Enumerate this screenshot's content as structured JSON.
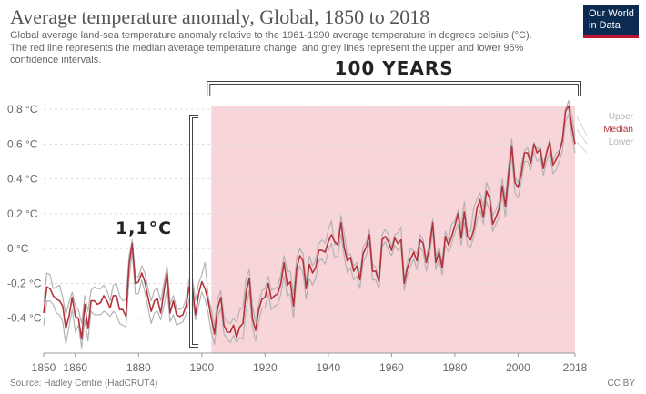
{
  "header": {
    "title": "Average temperature anomaly, Global, 1850 to 2018",
    "subtitle": "Global average land-sea temperature anomaly relative to the 1961-1990 average temperature in degrees celsius (°C). The red line represents the median average temperature change, and grey lines represent the upper and lower 95% confidence intervals."
  },
  "logo": {
    "line1": "Our World",
    "line2": "in Data"
  },
  "footer": {
    "source": "Source: Hadley Centre (HadCRUT4)",
    "license": "CC BY"
  },
  "annotations": {
    "years_label": "100 YEARS",
    "temp_label": "1,1°C"
  },
  "colors": {
    "median": "#b3333d",
    "bounds": "#b3b3b3",
    "highlight": "#f7d5d8",
    "grid": "#dddddd"
  },
  "chart_data": {
    "type": "line",
    "title": "Average temperature anomaly, Global, 1850 to 2018",
    "xlabel": "",
    "ylabel": "",
    "xlim": [
      1850,
      2018
    ],
    "ylim": [
      -0.6,
      0.9
    ],
    "x_ticks": [
      1850,
      1860,
      1880,
      1900,
      1920,
      1940,
      1960,
      1980,
      2000,
      2018
    ],
    "y_ticks": [
      -0.4,
      -0.2,
      0,
      0.2,
      0.4,
      0.6,
      0.8
    ],
    "y_tick_labels": [
      "-0.4 °C",
      "-0.2 °C",
      "0 °C",
      "0.2 °C",
      "0.4 °C",
      "0.6 °C",
      "0.8 °C"
    ],
    "grid": true,
    "legend": "right-end",
    "highlight_range": [
      1903,
      2018
    ],
    "x": [
      1850,
      1851,
      1852,
      1853,
      1854,
      1855,
      1856,
      1857,
      1858,
      1859,
      1860,
      1861,
      1862,
      1863,
      1864,
      1865,
      1866,
      1867,
      1868,
      1869,
      1870,
      1871,
      1872,
      1873,
      1874,
      1875,
      1876,
      1877,
      1878,
      1879,
      1880,
      1881,
      1882,
      1883,
      1884,
      1885,
      1886,
      1887,
      1888,
      1889,
      1890,
      1891,
      1892,
      1893,
      1894,
      1895,
      1896,
      1897,
      1898,
      1899,
      1900,
      1901,
      1902,
      1903,
      1904,
      1905,
      1906,
      1907,
      1908,
      1909,
      1910,
      1911,
      1912,
      1913,
      1914,
      1915,
      1916,
      1917,
      1918,
      1919,
      1920,
      1921,
      1922,
      1923,
      1924,
      1925,
      1926,
      1927,
      1928,
      1929,
      1930,
      1931,
      1932,
      1933,
      1934,
      1935,
      1936,
      1937,
      1938,
      1939,
      1940,
      1941,
      1942,
      1943,
      1944,
      1945,
      1946,
      1947,
      1948,
      1949,
      1950,
      1951,
      1952,
      1953,
      1954,
      1955,
      1956,
      1957,
      1958,
      1959,
      1960,
      1961,
      1962,
      1963,
      1964,
      1965,
      1966,
      1967,
      1968,
      1969,
      1970,
      1971,
      1972,
      1973,
      1974,
      1975,
      1976,
      1977,
      1978,
      1979,
      1980,
      1981,
      1982,
      1983,
      1984,
      1985,
      1986,
      1987,
      1988,
      1989,
      1990,
      1991,
      1992,
      1993,
      1994,
      1995,
      1996,
      1997,
      1998,
      1999,
      2000,
      2001,
      2002,
      2003,
      2004,
      2005,
      2006,
      2007,
      2008,
      2009,
      2010,
      2011,
      2012,
      2013,
      2014,
      2015,
      2016,
      2017,
      2018
    ],
    "series": [
      {
        "name": "Upper",
        "values": [
          -0.31,
          -0.14,
          -0.15,
          -0.23,
          -0.22,
          -0.21,
          -0.28,
          -0.38,
          -0.31,
          -0.25,
          -0.33,
          -0.35,
          -0.43,
          -0.27,
          -0.36,
          -0.24,
          -0.22,
          -0.23,
          -0.23,
          -0.21,
          -0.24,
          -0.3,
          -0.21,
          -0.2,
          -0.27,
          -0.3,
          -0.29,
          -0.04,
          0.05,
          -0.16,
          -0.16,
          -0.1,
          -0.14,
          -0.23,
          -0.3,
          -0.24,
          -0.23,
          -0.3,
          -0.2,
          -0.1,
          -0.32,
          -0.27,
          -0.34,
          -0.35,
          -0.34,
          -0.29,
          -0.18,
          -0.17,
          -0.3,
          -0.2,
          -0.15,
          -0.08,
          -0.27,
          -0.35,
          -0.45,
          -0.29,
          -0.24,
          -0.39,
          -0.42,
          -0.43,
          -0.4,
          -0.42,
          -0.35,
          -0.34,
          -0.17,
          -0.12,
          -0.33,
          -0.42,
          -0.32,
          -0.24,
          -0.23,
          -0.16,
          -0.24,
          -0.23,
          -0.22,
          -0.15,
          -0.04,
          -0.13,
          -0.13,
          -0.26,
          -0.05,
          0.0,
          -0.03,
          -0.19,
          -0.04,
          -0.1,
          -0.06,
          0.03,
          0.05,
          0.03,
          0.11,
          0.16,
          0.02,
          0.04,
          0.19,
          0.09,
          -0.04,
          -0.03,
          -0.1,
          -0.08,
          -0.15,
          0.01,
          0.04,
          0.11,
          -0.09,
          -0.11,
          -0.17,
          0.08,
          0.11,
          0.08,
          0.01,
          0.08,
          0.09,
          0.12,
          -0.18,
          -0.08,
          0.0,
          -0.01,
          -0.03,
          0.08,
          0.05,
          -0.06,
          0.04,
          0.17,
          -0.05,
          0.01,
          -0.08,
          0.1,
          0.05,
          0.14,
          0.16,
          0.22,
          0.13,
          0.27,
          0.1,
          0.1,
          0.24,
          0.28,
          0.32,
          0.24,
          0.38,
          0.33,
          0.19,
          0.22,
          0.27,
          0.4,
          0.29,
          0.48,
          0.63,
          0.41,
          0.38,
          0.48,
          0.56,
          0.58,
          0.51,
          0.61,
          0.57,
          0.58,
          0.48,
          0.56,
          0.63,
          0.5,
          0.55,
          0.56,
          0.63,
          0.8,
          0.85,
          0.76,
          0.65
        ]
      },
      {
        "name": "Median",
        "values": [
          -0.37,
          -0.22,
          -0.23,
          -0.27,
          -0.29,
          -0.3,
          -0.33,
          -0.46,
          -0.39,
          -0.28,
          -0.39,
          -0.4,
          -0.52,
          -0.32,
          -0.46,
          -0.3,
          -0.3,
          -0.32,
          -0.31,
          -0.27,
          -0.3,
          -0.34,
          -0.27,
          -0.27,
          -0.35,
          -0.35,
          -0.39,
          -0.09,
          0.03,
          -0.2,
          -0.19,
          -0.14,
          -0.19,
          -0.28,
          -0.36,
          -0.3,
          -0.29,
          -0.37,
          -0.25,
          -0.14,
          -0.37,
          -0.3,
          -0.38,
          -0.39,
          -0.38,
          -0.33,
          -0.22,
          -0.22,
          -0.38,
          -0.26,
          -0.19,
          -0.23,
          -0.3,
          -0.4,
          -0.49,
          -0.34,
          -0.28,
          -0.44,
          -0.48,
          -0.48,
          -0.44,
          -0.51,
          -0.45,
          -0.43,
          -0.25,
          -0.17,
          -0.4,
          -0.47,
          -0.35,
          -0.29,
          -0.28,
          -0.2,
          -0.29,
          -0.27,
          -0.26,
          -0.2,
          -0.08,
          -0.21,
          -0.19,
          -0.33,
          -0.11,
          -0.04,
          -0.07,
          -0.23,
          -0.09,
          -0.14,
          -0.11,
          -0.01,
          -0.01,
          -0.02,
          0.04,
          0.08,
          0.04,
          0.02,
          0.15,
          0.01,
          -0.07,
          -0.05,
          -0.13,
          -0.1,
          -0.18,
          -0.03,
          0.01,
          0.08,
          -0.13,
          -0.13,
          -0.19,
          0.05,
          0.07,
          0.04,
          -0.01,
          0.06,
          0.03,
          0.05,
          -0.2,
          -0.11,
          -0.06,
          -0.02,
          -0.07,
          0.05,
          0.03,
          -0.08,
          0.01,
          0.15,
          -0.08,
          -0.02,
          -0.11,
          0.07,
          0.02,
          0.07,
          0.13,
          0.2,
          0.06,
          0.21,
          0.07,
          0.05,
          0.11,
          0.23,
          0.28,
          0.18,
          0.33,
          0.29,
          0.14,
          0.18,
          0.23,
          0.36,
          0.24,
          0.43,
          0.59,
          0.38,
          0.35,
          0.43,
          0.55,
          0.55,
          0.49,
          0.6,
          0.55,
          0.57,
          0.46,
          0.55,
          0.61,
          0.48,
          0.51,
          0.55,
          0.62,
          0.79,
          0.82,
          0.7,
          0.6
        ]
      },
      {
        "name": "Lower",
        "values": [
          -0.44,
          -0.3,
          -0.3,
          -0.32,
          -0.37,
          -0.38,
          -0.42,
          -0.55,
          -0.45,
          -0.35,
          -0.48,
          -0.44,
          -0.57,
          -0.41,
          -0.53,
          -0.36,
          -0.38,
          -0.38,
          -0.38,
          -0.36,
          -0.37,
          -0.39,
          -0.36,
          -0.38,
          -0.43,
          -0.44,
          -0.45,
          -0.17,
          -0.02,
          -0.26,
          -0.26,
          -0.18,
          -0.25,
          -0.34,
          -0.43,
          -0.37,
          -0.36,
          -0.41,
          -0.33,
          -0.23,
          -0.42,
          -0.38,
          -0.44,
          -0.43,
          -0.42,
          -0.38,
          -0.29,
          -0.28,
          -0.41,
          -0.33,
          -0.25,
          -0.29,
          -0.37,
          -0.48,
          -0.55,
          -0.4,
          -0.34,
          -0.49,
          -0.52,
          -0.54,
          -0.5,
          -0.54,
          -0.51,
          -0.52,
          -0.35,
          -0.24,
          -0.45,
          -0.53,
          -0.42,
          -0.34,
          -0.34,
          -0.26,
          -0.35,
          -0.33,
          -0.32,
          -0.26,
          -0.16,
          -0.27,
          -0.26,
          -0.4,
          -0.16,
          -0.1,
          -0.14,
          -0.29,
          -0.17,
          -0.21,
          -0.17,
          -0.07,
          -0.06,
          -0.09,
          -0.01,
          0.03,
          -0.05,
          -0.04,
          0.08,
          -0.04,
          -0.14,
          -0.11,
          -0.18,
          -0.16,
          -0.23,
          -0.08,
          -0.04,
          0.04,
          -0.18,
          -0.18,
          -0.23,
          0.01,
          0.04,
          -0.01,
          -0.04,
          0.02,
          -0.01,
          0.01,
          -0.24,
          -0.15,
          -0.1,
          -0.06,
          -0.12,
          0.01,
          -0.02,
          -0.13,
          -0.04,
          0.1,
          -0.12,
          -0.06,
          -0.15,
          0.02,
          -0.02,
          0.03,
          0.09,
          0.14,
          0.02,
          0.15,
          0.02,
          0.01,
          0.07,
          0.16,
          0.22,
          0.14,
          0.27,
          0.22,
          0.1,
          0.14,
          0.18,
          0.31,
          0.18,
          0.38,
          0.53,
          0.32,
          0.29,
          0.38,
          0.5,
          0.5,
          0.45,
          0.56,
          0.5,
          0.52,
          0.42,
          0.5,
          0.55,
          0.43,
          0.45,
          0.5,
          0.56,
          0.73,
          0.77,
          0.65,
          0.55
        ]
      }
    ]
  }
}
